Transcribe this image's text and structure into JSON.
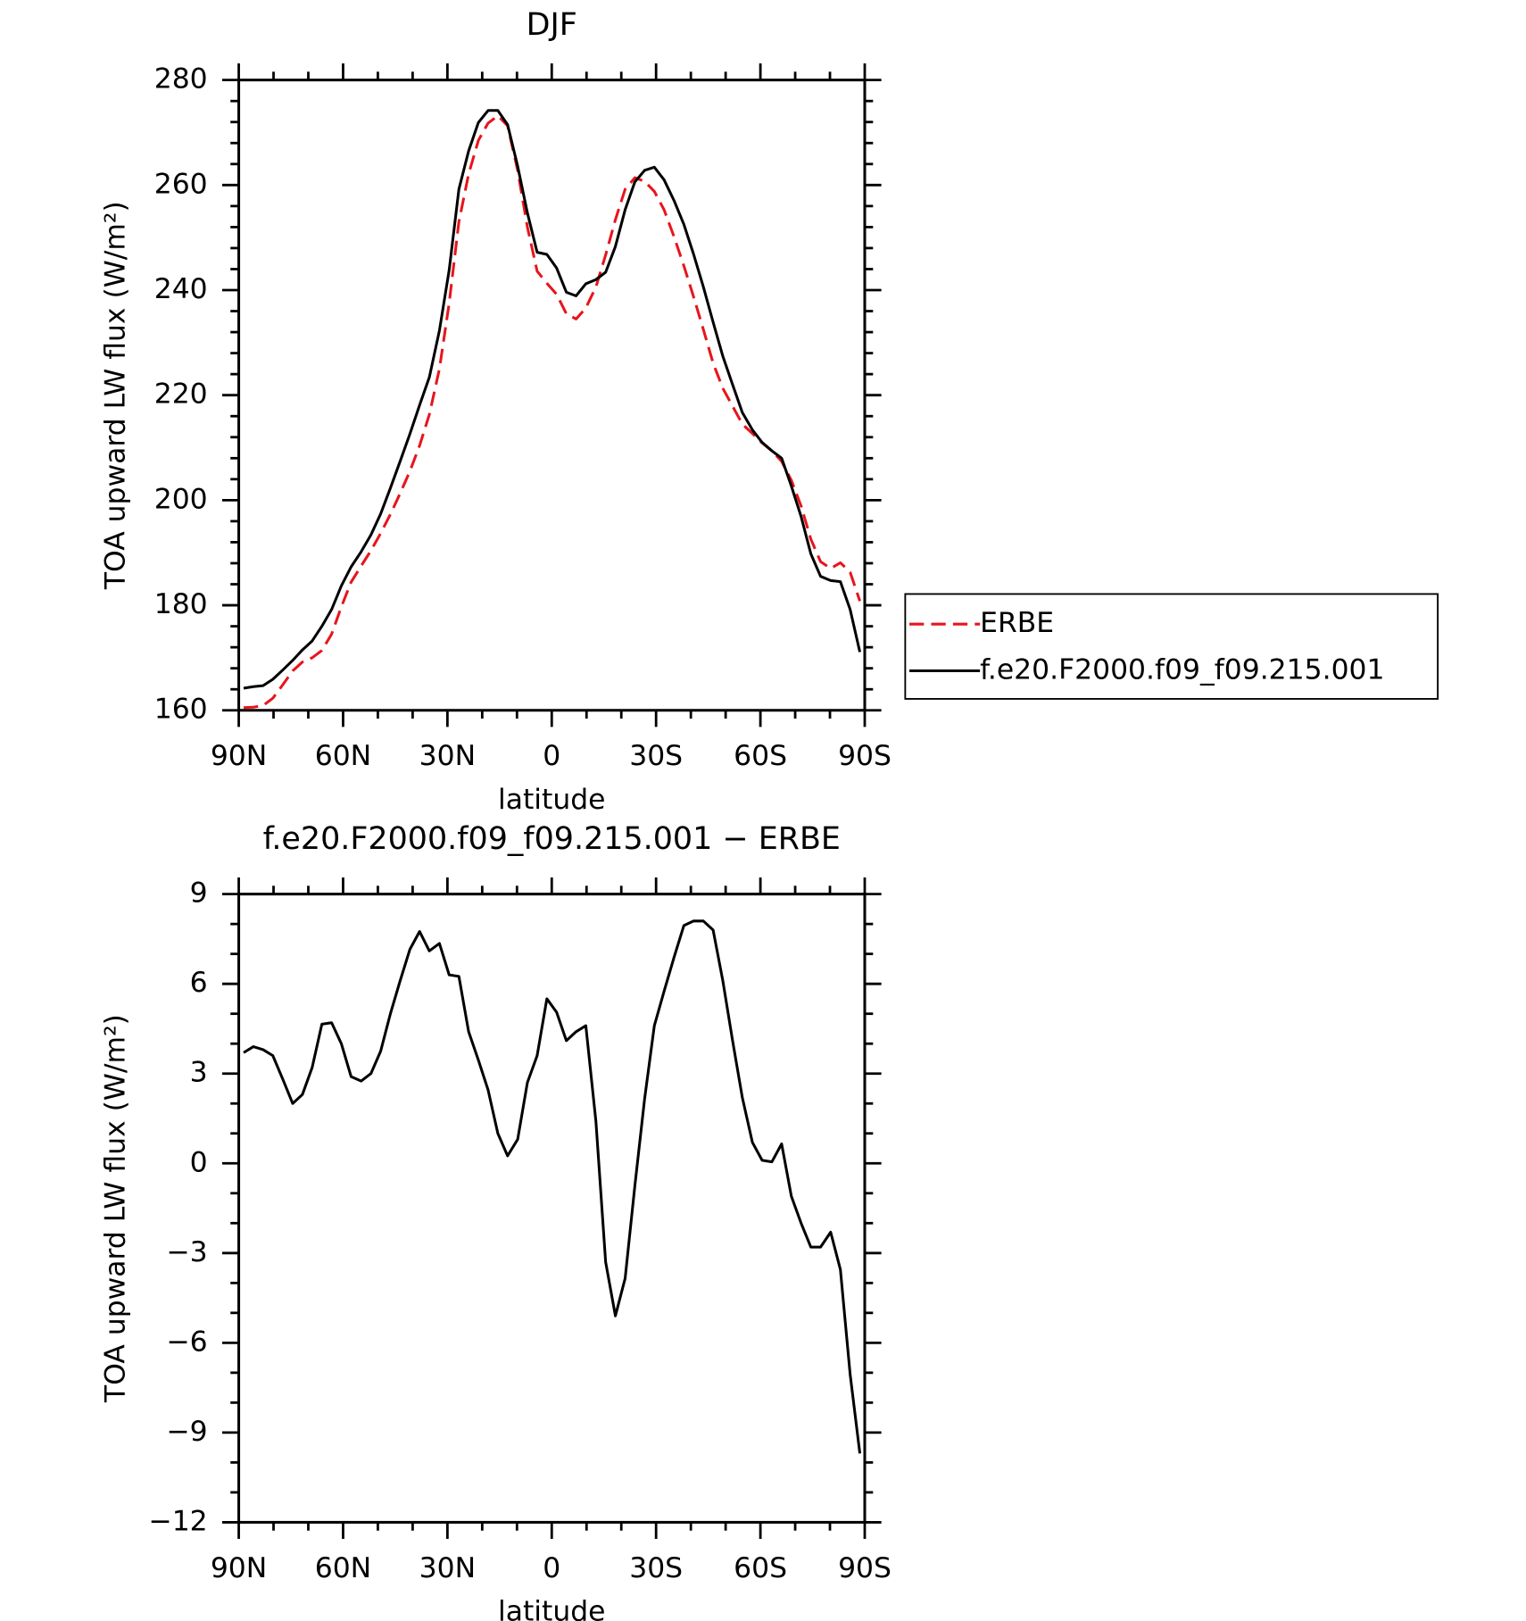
{
  "chart_data": [
    {
      "type": "line",
      "title": "DJF",
      "xlabel": "latitude",
      "ylabel": "TOA upward LW flux (W/m²)",
      "xlim": [
        90,
        -90
      ],
      "xticks": [
        {
          "value": 90,
          "label": "90N"
        },
        {
          "value": 60,
          "label": "60N"
        },
        {
          "value": 30,
          "label": "30N"
        },
        0,
        {
          "value": -30,
          "label": "30S"
        },
        {
          "value": -60,
          "label": "60S"
        },
        {
          "value": -90,
          "label": "90S"
        }
      ],
      "xminor": [
        80,
        70,
        50,
        40,
        20,
        10,
        -10,
        -20,
        -40,
        -50,
        -70,
        -80
      ],
      "ylim": [
        160,
        280
      ],
      "yticks": [
        160,
        180,
        200,
        220,
        240,
        260,
        280
      ],
      "yminor": [
        164,
        168,
        172,
        176,
        184,
        188,
        192,
        196,
        204,
        208,
        212,
        216,
        224,
        228,
        232,
        236,
        244,
        248,
        252,
        256,
        264,
        268,
        272,
        276
      ],
      "legend": "right",
      "x": [
        88.6,
        85.8,
        83.0,
        80.2,
        77.3,
        74.5,
        71.7,
        68.9,
        66.1,
        63.3,
        60.5,
        57.7,
        54.8,
        52.0,
        49.2,
        46.4,
        43.6,
        40.8,
        38.0,
        35.2,
        32.3,
        29.5,
        26.7,
        23.9,
        21.1,
        18.3,
        15.5,
        12.7,
        9.8,
        7.0,
        4.2,
        1.4,
        -1.4,
        -4.2,
        -7.0,
        -9.8,
        -12.7,
        -15.5,
        -18.3,
        -21.1,
        -23.9,
        -26.7,
        -29.5,
        -32.3,
        -35.2,
        -38.0,
        -40.8,
        -43.6,
        -46.4,
        -49.2,
        -52.0,
        -54.8,
        -57.7,
        -60.5,
        -63.3,
        -66.1,
        -68.9,
        -71.7,
        -74.5,
        -77.3,
        -80.2,
        -83.0,
        -85.8,
        -88.6
      ],
      "series": [
        {
          "name": "ERBE",
          "color": "#e8141c",
          "dash": true,
          "values": [
            160.5,
            160.6,
            160.9,
            162.3,
            164.9,
            167.5,
            169.2,
            170.0,
            171.4,
            174.5,
            179.7,
            184.4,
            187.5,
            190.4,
            193.7,
            197.3,
            201.3,
            205.5,
            210.4,
            216.3,
            225.0,
            237.5,
            253.0,
            262.1,
            268.5,
            271.8,
            273.2,
            271.3,
            262.8,
            252.0,
            243.6,
            241.3,
            239.2,
            235.5,
            234.5,
            236.6,
            240.6,
            246.7,
            253.4,
            259.2,
            261.4,
            260.7,
            258.8,
            255.3,
            250.1,
            244.6,
            238.7,
            232.5,
            226.1,
            221.3,
            217.9,
            214.5,
            212.7,
            210.9,
            209.4,
            207.4,
            203.8,
            198.9,
            192.6,
            188.3,
            187.0,
            188.1,
            186.3,
            180.8
          ]
        },
        {
          "name": "f.e20.F2000.f09_f09.215.001",
          "color": "#000000",
          "dash": false,
          "values": [
            164.2,
            164.5,
            164.7,
            165.9,
            167.7,
            169.5,
            171.5,
            173.2,
            176.0,
            179.2,
            183.7,
            187.3,
            190.2,
            193.4,
            197.4,
            202.3,
            207.4,
            212.6,
            218.1,
            223.4,
            232.3,
            243.8,
            259.2,
            266.5,
            271.9,
            274.2,
            274.2,
            271.5,
            263.6,
            254.7,
            247.2,
            246.8,
            244.2,
            239.6,
            238.9,
            241.2,
            242.0,
            243.4,
            248.3,
            255.3,
            260.6,
            262.8,
            263.4,
            261.0,
            257.0,
            252.5,
            246.8,
            240.6,
            233.9,
            227.4,
            222.0,
            216.7,
            213.4,
            211.0,
            209.4,
            208.0,
            202.7,
            196.9,
            189.8,
            185.5,
            184.7,
            184.5,
            179.2,
            171.1
          ]
        }
      ]
    },
    {
      "type": "line",
      "title": "f.e20.F2000.f09_f09.215.001 − ERBE",
      "xlabel": "latitude",
      "ylabel": "TOA upward LW flux (W/m²)",
      "xlim": [
        90,
        -90
      ],
      "xticks": [
        {
          "value": 90,
          "label": "90N"
        },
        {
          "value": 60,
          "label": "60N"
        },
        {
          "value": 30,
          "label": "30N"
        },
        0,
        {
          "value": -30,
          "label": "30S"
        },
        {
          "value": -60,
          "label": "60S"
        },
        {
          "value": -90,
          "label": "90S"
        }
      ],
      "xminor": [
        80,
        70,
        50,
        40,
        20,
        10,
        -10,
        -20,
        -40,
        -50,
        -70,
        -80
      ],
      "ylim": [
        -12,
        9
      ],
      "yticks": [
        {
          "value": -12,
          "label": "−12"
        },
        {
          "value": -9,
          "label": "−9"
        },
        {
          "value": -6,
          "label": "−6"
        },
        {
          "value": -3,
          "label": "−3"
        },
        0,
        3,
        6,
        9
      ],
      "yminor": [
        -11,
        -10,
        -8,
        -7,
        -5,
        -4,
        -2,
        -1,
        1,
        2,
        4,
        5,
        7,
        8
      ],
      "x": [
        88.6,
        85.8,
        83.0,
        80.2,
        77.3,
        74.5,
        71.7,
        68.9,
        66.1,
        63.3,
        60.5,
        57.7,
        54.8,
        52.0,
        49.2,
        46.4,
        43.6,
        40.8,
        38.0,
        35.2,
        32.3,
        29.5,
        26.7,
        23.9,
        21.1,
        18.3,
        15.5,
        12.7,
        9.8,
        7.0,
        4.2,
        1.4,
        -1.4,
        -4.2,
        -7.0,
        -9.8,
        -12.7,
        -15.5,
        -18.3,
        -21.1,
        -23.9,
        -26.7,
        -29.5,
        -32.3,
        -35.2,
        -38.0,
        -40.8,
        -43.6,
        -46.4,
        -49.2,
        -52.0,
        -54.8,
        -57.7,
        -60.5,
        -63.3,
        -66.1,
        -68.9,
        -71.7,
        -74.5,
        -77.3,
        -80.2,
        -83.0,
        -85.8,
        -88.6
      ],
      "series": [
        {
          "color": "#000000",
          "dash": false,
          "values": [
            3.7,
            3.9,
            3.8,
            3.6,
            2.8,
            2.0,
            2.3,
            3.2,
            4.65,
            4.7,
            4.0,
            2.9,
            2.75,
            3.0,
            3.75,
            5.0,
            6.1,
            7.15,
            7.75,
            7.1,
            7.35,
            6.3,
            6.25,
            4.4,
            3.45,
            2.45,
            1.0,
            0.25,
            0.8,
            2.7,
            3.6,
            5.5,
            5.05,
            4.1,
            4.4,
            4.6,
            1.4,
            -3.3,
            -5.1,
            -3.85,
            -0.75,
            2.15,
            4.6,
            5.75,
            6.9,
            7.95,
            8.1,
            8.1,
            7.8,
            6.1,
            4.1,
            2.2,
            0.7,
            0.1,
            0.05,
            0.65,
            -1.1,
            -2.0,
            -2.8,
            -2.8,
            -2.3,
            -3.55,
            -7.05,
            -9.7
          ]
        }
      ]
    }
  ]
}
